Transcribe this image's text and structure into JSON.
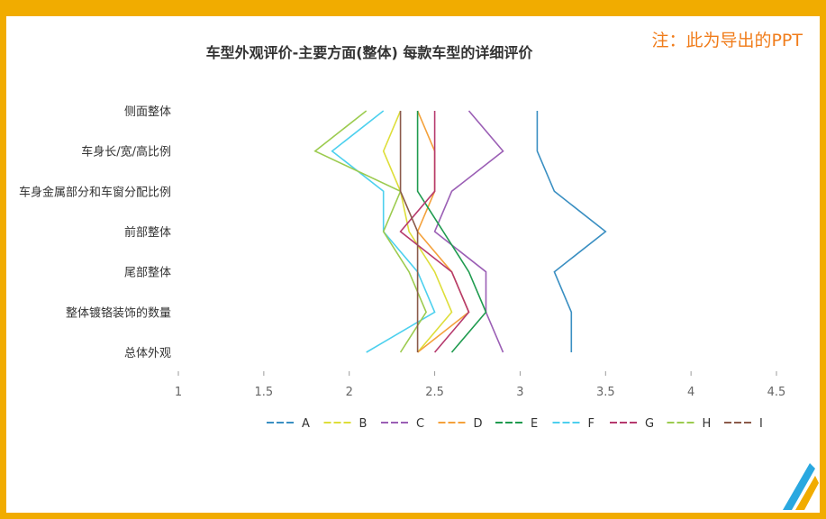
{
  "note": "注：此为导出的PPT",
  "colors": {
    "frame": "#f1ac00",
    "note": "#f07c1a",
    "axis": "#9b9b9b",
    "A": "#3a8fc2",
    "B": "#dede3a",
    "C": "#9b5fb5",
    "D": "#f4a13b",
    "E": "#1f9b4f",
    "F": "#4dd0ee",
    "G": "#b63a6e",
    "H": "#9ccb4f",
    "I": "#8b5a4a"
  },
  "chart_data": {
    "type": "line",
    "title": "车型外观评价-主要方面(整体) 每款车型的详细评价",
    "orientation": "horizontal",
    "categories": [
      "侧面整体",
      "车身长/宽/高比例",
      "车身金属部分和车窗分配比例",
      "前部整体",
      "尾部整体",
      "整体镀铬装饰的数量",
      "总体外观"
    ],
    "xlim": [
      1,
      4.5
    ],
    "xticks": [
      "1",
      "1.5",
      "2",
      "2.5",
      "3",
      "3.5",
      "4",
      "4.5"
    ],
    "xtick_values": [
      1,
      1.5,
      2,
      2.5,
      3,
      3.5,
      4,
      4.5
    ],
    "legend_position": "bottom",
    "series": [
      {
        "name": "A",
        "values": [
          3.1,
          3.1,
          3.2,
          3.5,
          3.2,
          3.3,
          3.3
        ]
      },
      {
        "name": "B",
        "values": [
          2.3,
          2.2,
          2.3,
          2.35,
          2.5,
          2.6,
          2.4
        ]
      },
      {
        "name": "C",
        "values": [
          2.7,
          2.9,
          2.6,
          2.5,
          2.8,
          2.8,
          2.9
        ]
      },
      {
        "name": "D",
        "values": [
          2.4,
          2.5,
          2.5,
          2.4,
          2.6,
          2.7,
          2.4
        ]
      },
      {
        "name": "E",
        "values": [
          2.4,
          2.4,
          2.4,
          2.55,
          2.7,
          2.8,
          2.6
        ]
      },
      {
        "name": "F",
        "values": [
          2.2,
          1.9,
          2.2,
          2.2,
          2.4,
          2.5,
          2.1
        ]
      },
      {
        "name": "G",
        "values": [
          2.5,
          2.5,
          2.5,
          2.3,
          2.6,
          2.7,
          2.5
        ]
      },
      {
        "name": "H",
        "values": [
          2.1,
          1.8,
          2.3,
          2.2,
          2.35,
          2.45,
          2.3
        ]
      },
      {
        "name": "I",
        "values": [
          2.3,
          2.3,
          2.3,
          2.4,
          2.4,
          2.4,
          2.4
        ]
      }
    ]
  }
}
